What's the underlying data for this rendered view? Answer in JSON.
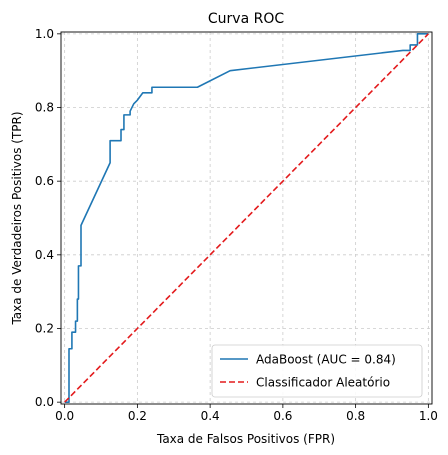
{
  "chart_data": {
    "type": "line",
    "title": "Curva ROC",
    "xlabel": "Taxa de Falsos Positivos (FPR)",
    "ylabel": "Taxa de Verdadeiros Positivos (TPR)",
    "xlim": [
      -0.01,
      1.01
    ],
    "ylim": [
      -0.005,
      1.005
    ],
    "xticks": [
      "0.0",
      "0.2",
      "0.4",
      "0.6",
      "0.8",
      "1.0"
    ],
    "yticks": [
      "0.0",
      "0.2",
      "0.4",
      "0.6",
      "0.8",
      "1.0"
    ],
    "grid": true,
    "legend_position": "lower-right",
    "series": [
      {
        "name": "AdaBoost (AUC = 0.84)",
        "color": "#1f77b4",
        "style": "solid",
        "x": [
          0.0,
          0.0,
          0.012,
          0.012,
          0.02,
          0.02,
          0.03,
          0.03,
          0.035,
          0.035,
          0.038,
          0.038,
          0.045,
          0.045,
          0.125,
          0.125,
          0.155,
          0.155,
          0.163,
          0.163,
          0.18,
          0.18,
          0.19,
          0.2,
          0.215,
          0.215,
          0.24,
          0.24,
          0.365,
          0.455,
          0.93,
          0.95,
          0.95,
          0.97,
          0.97,
          1.0
        ],
        "y": [
          0.0,
          0.0,
          0.0,
          0.145,
          0.145,
          0.19,
          0.19,
          0.22,
          0.22,
          0.28,
          0.28,
          0.37,
          0.37,
          0.48,
          0.65,
          0.71,
          0.71,
          0.74,
          0.74,
          0.78,
          0.78,
          0.79,
          0.81,
          0.82,
          0.84,
          0.84,
          0.84,
          0.855,
          0.855,
          0.9,
          0.955,
          0.955,
          0.97,
          0.97,
          1.0,
          1.0
        ]
      },
      {
        "name": "Classificador Aleatório",
        "color": "#e31a1c",
        "style": "dashed",
        "x": [
          0,
          1
        ],
        "y": [
          0,
          1
        ]
      }
    ]
  }
}
